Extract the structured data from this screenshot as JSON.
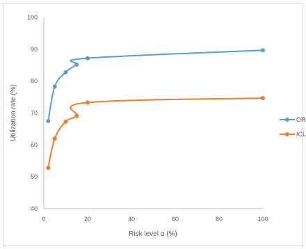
{
  "chart_data": {
    "type": "line",
    "title": "",
    "xlabel": "Risk level α (%)",
    "ylabel": "Utilization rate (%)",
    "xlim": [
      0,
      100
    ],
    "ylim": [
      40,
      100
    ],
    "xticks": [
      "0",
      "20",
      "40",
      "60",
      "80",
      "100"
    ],
    "yticks": [
      "40",
      "50",
      "60",
      "70",
      "80",
      "90",
      "100"
    ],
    "grid": false,
    "legend_position": "right",
    "series": [
      {
        "name": "OR",
        "color": "#5b9bd5",
        "x": [
          2,
          5,
          10,
          15,
          20,
          100
        ],
        "y": [
          67.5,
          78.3,
          82.8,
          85.2,
          87.2,
          89.7
        ]
      },
      {
        "name": "ICU",
        "color": "#ed7d31",
        "x": [
          2,
          5,
          10,
          15,
          20,
          100
        ],
        "y": [
          52.8,
          62.0,
          67.3,
          69.1,
          73.3,
          74.7
        ]
      }
    ]
  }
}
